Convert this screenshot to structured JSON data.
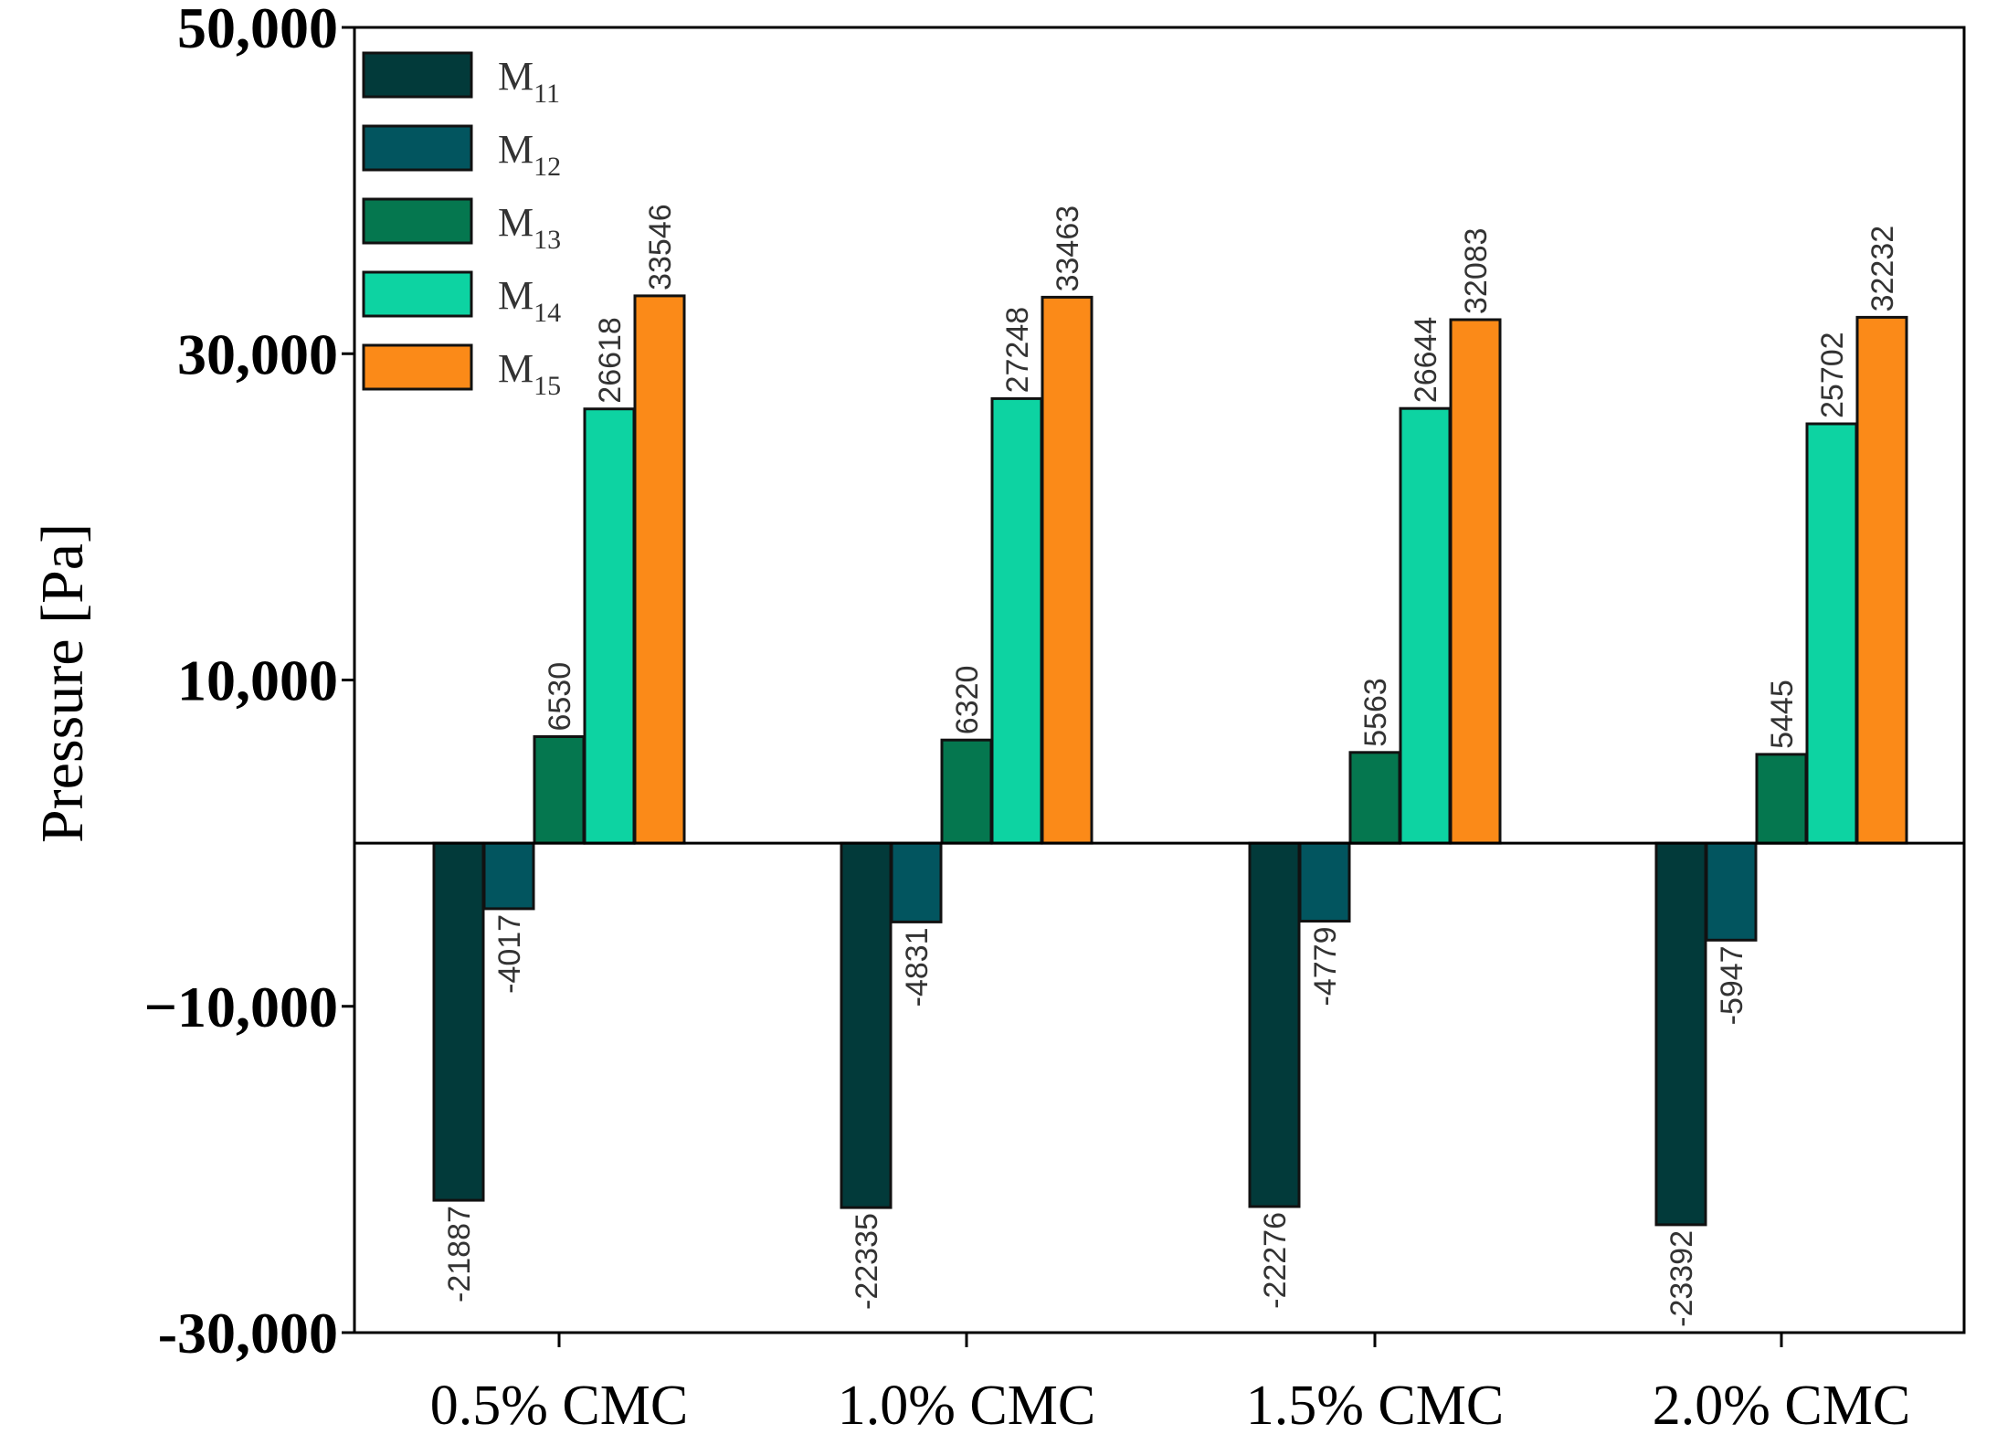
{
  "chart_data": {
    "type": "bar",
    "title": "",
    "xlabel": "",
    "ylabel": "Pressure [Pa]",
    "ylim": [
      -30000,
      50000
    ],
    "yticks": [
      50000,
      30000,
      10000,
      -10000,
      -30000
    ],
    "ytick_labels": [
      "50,000",
      "30,000",
      "10,000",
      "−10,000",
      "-30,000"
    ],
    "categories": [
      "0.5% CMC",
      "1.0% CMC",
      "1.5% CMC",
      "2.0% CMC"
    ],
    "legend_position": "top-left",
    "series": [
      {
        "name": "M",
        "sub": "11",
        "color": "#023a3a",
        "values": [
          -21887,
          -22335,
          -22276,
          -23392
        ],
        "labels": [
          "-21887",
          "-22335",
          "-22276",
          "-23392"
        ]
      },
      {
        "name": "M",
        "sub": "12",
        "color": "#02555f",
        "values": [
          -4017,
          -4831,
          -4779,
          -5947
        ],
        "labels": [
          "-4017",
          "-4831",
          "-4779",
          "-5947"
        ]
      },
      {
        "name": "M",
        "sub": "13",
        "color": "#05774f",
        "values": [
          6530,
          6320,
          5563,
          5445
        ],
        "labels": [
          "6530",
          "6320",
          "5563",
          "5445"
        ]
      },
      {
        "name": "M",
        "sub": "14",
        "color": "#0dd3a2",
        "values": [
          26618,
          27248,
          26644,
          25702
        ],
        "labels": [
          "26618",
          "27248",
          "26644",
          "25702"
        ]
      },
      {
        "name": "M",
        "sub": "15",
        "color": "#fb8a18",
        "values": [
          33546,
          33463,
          32083,
          32232
        ],
        "labels": [
          "33546",
          "33463",
          "32083",
          "32232"
        ]
      }
    ]
  }
}
